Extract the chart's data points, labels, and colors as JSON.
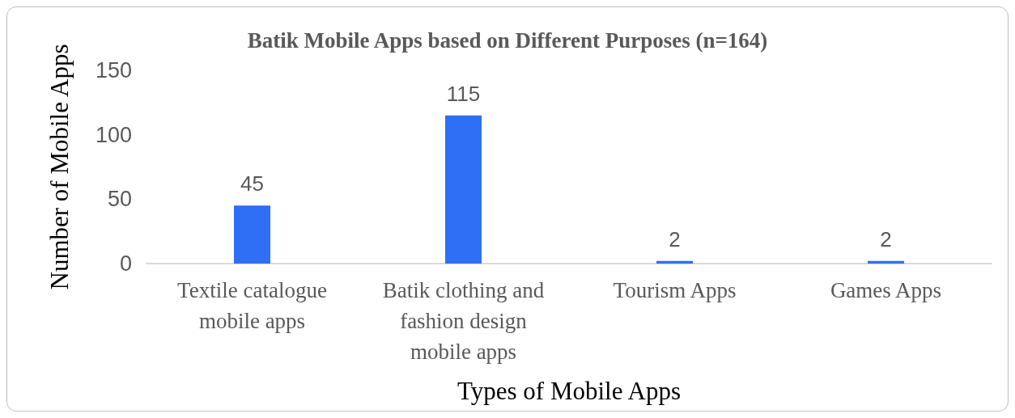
{
  "chart_data": {
    "type": "bar",
    "title": "Batik Mobile Apps based on Different Purposes (n=164)",
    "xlabel": "Types of Mobile Apps",
    "ylabel": "Number of Mobile Apps",
    "categories": [
      "Textile catalogue\nmobile apps",
      "Batik clothing and\nfashion design\nmobile apps",
      "Tourism Apps",
      "Games Apps"
    ],
    "values": [
      45,
      115,
      2,
      2
    ],
    "color": "#2f6ff5",
    "ylim": [
      0,
      150
    ],
    "yticks": [
      0,
      50,
      100,
      150
    ],
    "grid": false,
    "data_labels": true
  }
}
